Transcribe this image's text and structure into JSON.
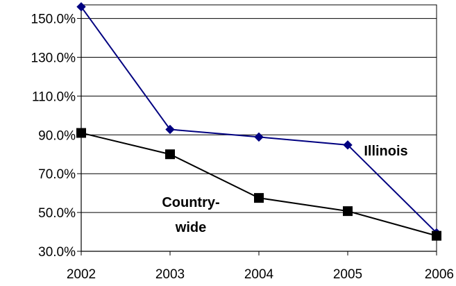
{
  "chart_data": {
    "type": "line",
    "x": [
      "2002",
      "2003",
      "2004",
      "2005",
      "2006"
    ],
    "ylim": [
      30,
      150
    ],
    "y_ticks": [
      30,
      50,
      70,
      90,
      110,
      130,
      150
    ],
    "y_tick_labels": [
      "30.0%",
      "50.0%",
      "70.0%",
      "90.0%",
      "110.0%",
      "130.0%",
      "150.0%"
    ],
    "grid": "horizontal",
    "legend": "none",
    "series": [
      {
        "name": "Illinois",
        "values": [
          156,
          92.8,
          88.9,
          84.8,
          39.5
        ],
        "color": "#000080",
        "marker": "diamond"
      },
      {
        "name": "Country-wide",
        "name_lines": [
          "Country-",
          "wide"
        ],
        "values": [
          91,
          80,
          57.5,
          50.7,
          38
        ],
        "color": "#000000",
        "marker": "square"
      }
    ]
  }
}
